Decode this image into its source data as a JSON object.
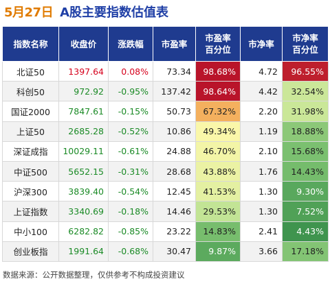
{
  "header": {
    "date": "5月27日",
    "title": "A股主要指数估值表"
  },
  "chart_data": {
    "type": "table",
    "columns": [
      "指数名称",
      "收盘价",
      "涨跌幅",
      "市盈率",
      "市盈率\n百分位",
      "市净率",
      "市净率\n百分位"
    ],
    "rows": [
      {
        "name": "北证50",
        "close": "1397.64",
        "change": "0.08%",
        "pe": "73.34",
        "pe_pct": "98.68%",
        "pb": "4.72",
        "pb_pct": "96.55%"
      },
      {
        "name": "科创50",
        "close": "972.92",
        "change": "-0.95%",
        "pe": "137.42",
        "pe_pct": "98.64%",
        "pb": "4.42",
        "pb_pct": "32.54%"
      },
      {
        "name": "国证2000",
        "close": "7847.61",
        "change": "-0.15%",
        "pe": "50.73",
        "pe_pct": "67.32%",
        "pb": "2.20",
        "pb_pct": "31.98%"
      },
      {
        "name": "上证50",
        "close": "2685.28",
        "change": "-0.52%",
        "pe": "10.86",
        "pe_pct": "49.34%",
        "pb": "1.19",
        "pb_pct": "18.88%"
      },
      {
        "name": "深证成指",
        "close": "10029.11",
        "change": "-0.61%",
        "pe": "24.88",
        "pe_pct": "46.70%",
        "pb": "2.10",
        "pb_pct": "15.68%"
      },
      {
        "name": "中证500",
        "close": "5652.15",
        "change": "-0.31%",
        "pe": "28.68",
        "pe_pct": "43.88%",
        "pb": "1.76",
        "pb_pct": "14.43%"
      },
      {
        "name": "沪深300",
        "close": "3839.40",
        "change": "-0.54%",
        "pe": "12.45",
        "pe_pct": "41.53%",
        "pb": "1.30",
        "pb_pct": "9.30%"
      },
      {
        "name": "上证指数",
        "close": "3340.69",
        "change": "-0.18%",
        "pe": "14.46",
        "pe_pct": "29.53%",
        "pb": "1.30",
        "pb_pct": "7.52%"
      },
      {
        "name": "中小100",
        "close": "6282.82",
        "change": "-0.85%",
        "pe": "23.22",
        "pe_pct": "14.83%",
        "pb": "2.41",
        "pb_pct": "4.43%"
      },
      {
        "name": "创业板指",
        "close": "1991.64",
        "change": "-0.68%",
        "pe": "30.47",
        "pe_pct": "9.87%",
        "pb": "3.66",
        "pb_pct": "17.18%"
      }
    ],
    "colors": {
      "header_bg": "#1f3b8f",
      "up": "#d6001c",
      "down": "#1a8a25",
      "date": "#e07b00",
      "title": "#1f3fa6"
    }
  },
  "footer": {
    "note": "数据来源：公开数据整理，仅供参考不构成投资建议"
  }
}
